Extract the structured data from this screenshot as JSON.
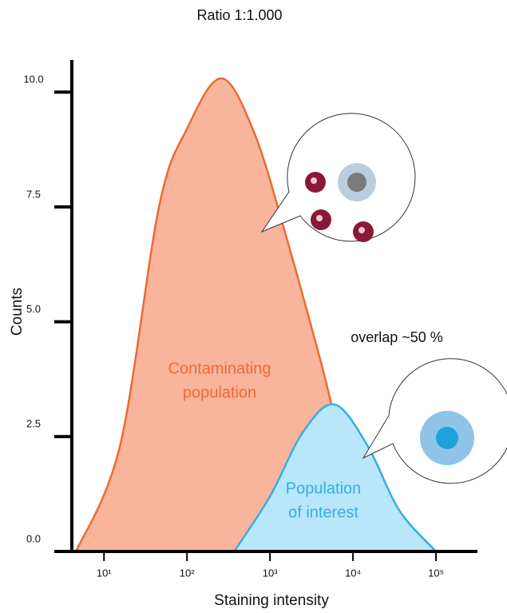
{
  "chart_data": {
    "type": "area",
    "title": "Ratio 1:1.000",
    "xlabel": "Staining intensity",
    "ylabel": "Counts",
    "annotation": "overlap ~50 %",
    "xscale": "log",
    "xlim": [
      4.1,
      316000
    ],
    "ylim": [
      0,
      10.7
    ],
    "xticks": [
      {
        "value": 10,
        "label": "10¹"
      },
      {
        "value": 100,
        "label": "10²"
      },
      {
        "value": 1000,
        "label": "10³"
      },
      {
        "value": 10000,
        "label": "10⁴"
      },
      {
        "value": 100000,
        "label": "10⁵"
      }
    ],
    "yticks": [
      {
        "value": 0,
        "label": "0.0"
      },
      2.5,
      {
        "value": 5,
        "label": "5.0"
      },
      7.5,
      {
        "value": 10,
        "label": "10.0"
      }
    ],
    "series": [
      {
        "label": [
          "Contaminating",
          "population"
        ],
        "color": "#ec6a32",
        "fill": "#f9b49c",
        "x": [
          4.6,
          15.6,
          46,
          100,
          260,
          650,
          1600,
          4000,
          7600,
          23000
        ],
        "values": [
          0,
          2.3,
          7.5,
          9.2,
          10.3,
          9.1,
          6.8,
          4.2,
          2.3,
          0
        ]
      },
      {
        "label": [
          "Population",
          "of interest"
        ],
        "color": "#35aee2",
        "fill": "#b8e6fa",
        "x": [
          370,
          1000,
          2500,
          6000,
          15000,
          36000,
          100000
        ],
        "values": [
          0,
          1.2,
          2.6,
          3.2,
          2.3,
          0.9,
          0
        ]
      }
    ]
  }
}
